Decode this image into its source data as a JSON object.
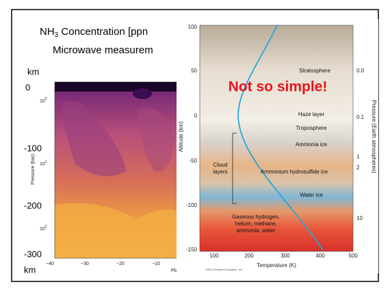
{
  "slide": {
    "title": {
      "line1": [
        "NH",
        "3",
        " Concentration [ppn"
      ],
      "line2": "Microwave measurem"
    },
    "left_figure": {
      "km_labels": [
        "km",
        "0",
        "-100",
        "-200",
        "-300",
        "km"
      ],
      "pressure_ticks": [
        [
          "10",
          "0"
        ],
        [
          "10",
          "1"
        ],
        [
          "10",
          "2"
        ]
      ],
      "pressure_label": "Pressure (bar)",
      "x_ticks": [
        "−40",
        "−30",
        "−20",
        "−10"
      ],
      "x_label": "Planet"
    },
    "right_figure": {
      "y_ticks": [
        "100",
        "50",
        "0",
        "-50",
        "-100",
        "-150"
      ],
      "y_label": "Altitude (km)",
      "x_ticks": [
        "100",
        "200",
        "300",
        "400",
        "500"
      ],
      "x_label": "Temperature (K)",
      "pressure_ticks": [
        "0.0",
        "0.1",
        "1",
        "2",
        "10"
      ],
      "pressure_label": "Pressure (Earth atmospheres)",
      "layers": [
        "Stratosphere",
        "Haze layer",
        "Troposphere",
        "Ammonia ice",
        "Ammonium hydrosulfide ice",
        "Water ice"
      ],
      "cloud_label": [
        "Cloud",
        "layers"
      ],
      "gas_label": [
        "Gaseous hydrogen,",
        "helium, methane,",
        "ammonia, water"
      ],
      "callout": "Not so simple!",
      "credit": "©2011 Pearson Education, Inc."
    }
  }
}
